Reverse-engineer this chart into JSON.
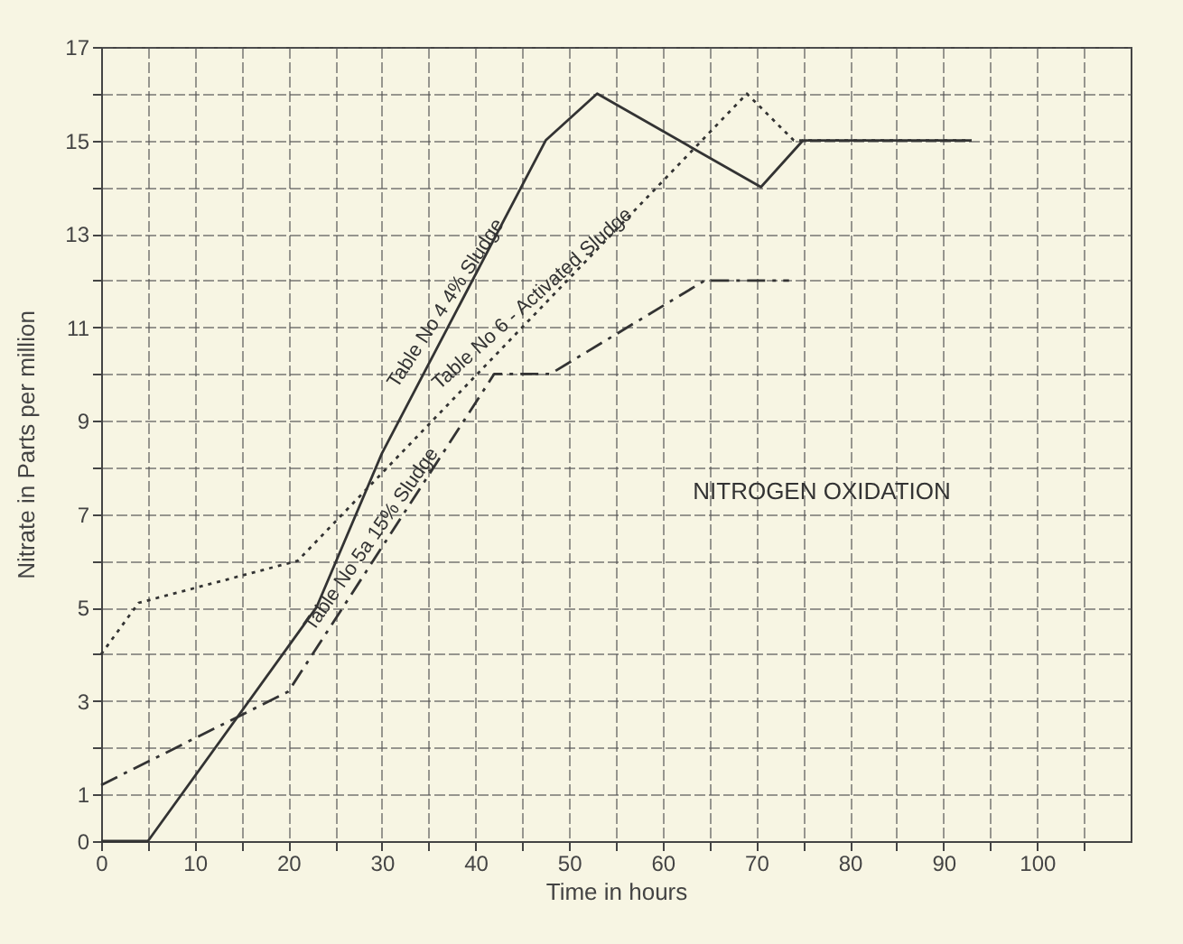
{
  "chart_data": {
    "type": "line",
    "title": "NITROGEN OXIDATION",
    "xlabel": "Time in hours",
    "ylabel": "Nitrate in Parts per million",
    "xlim": [
      0,
      110
    ],
    "ylim": [
      0,
      17
    ],
    "xticks": [
      0,
      {
        "value": 5,
        "label": null
      },
      10,
      {
        "value": 15,
        "label": null
      },
      20,
      {
        "value": 25,
        "label": null
      },
      30,
      {
        "value": 35,
        "label": null
      },
      40,
      {
        "value": 45,
        "label": null
      },
      50,
      {
        "value": 55,
        "label": null
      },
      60,
      {
        "value": 65,
        "label": null
      },
      70,
      {
        "value": 75,
        "label": null
      },
      80,
      {
        "value": 85,
        "label": null
      },
      90,
      {
        "value": 95,
        "label": null
      },
      100,
      {
        "value": 105,
        "label": null
      }
    ],
    "yticks": [
      0,
      1,
      {
        "value": 2,
        "label": null
      },
      3,
      {
        "value": 4,
        "label": null
      },
      5,
      {
        "value": 6,
        "label": null
      },
      7,
      {
        "value": 8,
        "label": null
      },
      9,
      {
        "value": 10,
        "label": null
      },
      11,
      {
        "value": 12,
        "label": null
      },
      13,
      {
        "value": 14,
        "label": null
      },
      15,
      {
        "value": 16,
        "label": null
      },
      17
    ],
    "grid": true,
    "marker": "none",
    "series": [
      {
        "color": "#333333",
        "line_style": "solid",
        "x": [
          0,
          5,
          23,
          30,
          47.5,
          53,
          70.5,
          75,
          93
        ],
        "values": [
          0,
          0,
          5,
          8.3,
          15,
          16,
          14,
          15,
          15
        ]
      },
      {
        "color": "#333333",
        "line_style": "dotted",
        "x": [
          0,
          4,
          21,
          69,
          74,
          93
        ],
        "values": [
          4,
          5.1,
          6,
          16,
          15,
          15
        ]
      },
      {
        "color": "#333333",
        "line_style": "dashed",
        "x": [
          0,
          20,
          42,
          48,
          64.5,
          73.5
        ],
        "values": [
          1.2,
          3.2,
          10,
          10,
          12,
          12
        ]
      }
    ],
    "annotations": [
      {
        "text": "Table No 4  4% Sludge",
        "x": 38,
        "y": 11.36
      },
      {
        "text": "Table No 6 - Activated Sludge",
        "x": 47,
        "y": 11.4
      },
      {
        "text": "Table No 5a  15% Sludge",
        "x": 30,
        "y": 6.3
      }
    ]
  }
}
